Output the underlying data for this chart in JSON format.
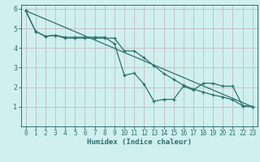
{
  "xlabel": "Humidex (Indice chaleur)",
  "background_color": "#cff0ee",
  "grid_color": "#c8bfc8",
  "line_color": "#2d7070",
  "xlim": [
    -0.5,
    23.5
  ],
  "ylim": [
    0,
    6.2
  ],
  "xticks": [
    0,
    1,
    2,
    3,
    4,
    5,
    6,
    7,
    8,
    9,
    10,
    11,
    12,
    13,
    14,
    15,
    16,
    17,
    18,
    19,
    20,
    21,
    22,
    23
  ],
  "yticks": [
    1,
    2,
    3,
    4,
    5,
    6
  ],
  "line1_x": [
    0,
    1,
    2,
    3,
    4,
    5,
    6,
    7,
    8,
    9,
    10,
    11,
    12,
    13,
    14,
    15,
    16,
    17,
    18,
    19,
    20,
    21,
    22,
    23
  ],
  "line1_y": [
    5.9,
    4.85,
    4.6,
    4.65,
    4.55,
    4.55,
    4.55,
    4.55,
    4.55,
    4.22,
    2.6,
    2.72,
    2.15,
    1.28,
    1.38,
    1.38,
    2.05,
    1.85,
    2.2,
    2.2,
    2.05,
    2.05,
    1.05,
    1.0
  ],
  "line2_x": [
    0,
    1,
    2,
    3,
    4,
    5,
    6,
    7,
    8,
    9,
    10,
    11,
    12,
    13,
    14,
    15,
    16,
    17,
    18,
    19,
    20,
    21,
    22,
    23
  ],
  "line2_y": [
    5.9,
    4.85,
    4.58,
    4.65,
    4.5,
    4.5,
    4.5,
    4.5,
    4.5,
    4.5,
    3.85,
    3.85,
    3.5,
    3.1,
    2.7,
    2.4,
    2.1,
    1.9,
    1.75,
    1.6,
    1.5,
    1.35,
    1.05,
    1.0
  ],
  "line3_x": [
    0,
    23
  ],
  "line3_y": [
    5.9,
    1.0
  ]
}
